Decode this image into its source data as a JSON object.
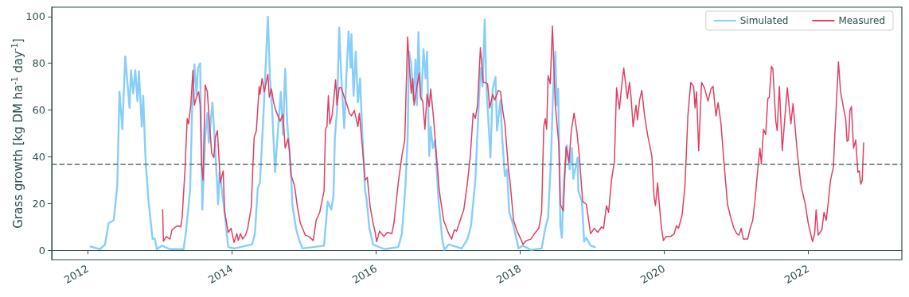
{
  "chart_data": {
    "type": "line",
    "ylabel": "Grass growth [kg DM ha$^{-1}$ day$^{-1}$]",
    "xlim": [
      2011.5,
      2023.3
    ],
    "xticks": [
      2012,
      2014,
      2016,
      2018,
      2020,
      2022
    ],
    "ylim": [
      -4,
      104
    ],
    "yticks": [
      0,
      20,
      40,
      60,
      80,
      100
    ],
    "legend": "top right",
    "marker": "none",
    "line_style": "solid",
    "ref_lines": [
      {
        "axis": "y",
        "value": 37,
        "color": "#5a6e6b",
        "line_style": "dashed"
      }
    ],
    "series": [
      {
        "name": "Simulated",
        "color": "#87cefa",
        "x": [
          2012.04,
          2012.17,
          2012.24,
          2012.29,
          2012.36,
          2012.41,
          2012.44,
          2012.48,
          2012.52,
          2012.58,
          2012.6,
          2012.63,
          2012.66,
          2012.69,
          2012.71,
          2012.75,
          2012.77,
          2012.8,
          2012.84,
          2012.9,
          2012.93,
          2012.96,
          2013.03,
          2013.14,
          2013.33,
          2013.36,
          2013.42,
          2013.45,
          2013.48,
          2013.51,
          2013.53,
          2013.56,
          2013.59,
          2013.63,
          2013.66,
          2013.68,
          2013.73,
          2013.76,
          2013.81,
          2013.83,
          2013.9,
          2013.95,
          2014.03,
          2014.28,
          2014.32,
          2014.36,
          2014.39,
          2014.44,
          2014.47,
          2014.5,
          2014.53,
          2014.56,
          2014.6,
          2014.62,
          2014.68,
          2014.71,
          2014.74,
          2014.77,
          2014.82,
          2014.84,
          2014.89,
          2014.93,
          2014.98,
          2015.28,
          2015.33,
          2015.38,
          2015.41,
          2015.43,
          2015.46,
          2015.49,
          2015.52,
          2015.56,
          2015.59,
          2015.62,
          2015.65,
          2015.66,
          2015.69,
          2015.72,
          2015.75,
          2015.78,
          2015.81,
          2015.85,
          2015.87,
          2015.91,
          2015.96,
          2016.12,
          2016.31,
          2016.36,
          2016.41,
          2016.44,
          2016.46,
          2016.49,
          2016.52,
          2016.55,
          2016.57,
          2016.59,
          2016.61,
          2016.63,
          2016.66,
          2016.69,
          2016.71,
          2016.74,
          2016.76,
          2016.79,
          2016.82,
          2016.87,
          2016.92,
          2016.95,
          2017.01,
          2017.19,
          2017.27,
          2017.32,
          2017.38,
          2017.42,
          2017.45,
          2017.48,
          2017.51,
          2017.53,
          2017.59,
          2017.62,
          2017.66,
          2017.68,
          2017.73,
          2017.75,
          2017.79,
          2017.82,
          2017.85,
          2017.91,
          2017.98,
          2018.04,
          2018.15,
          2018.3,
          2018.35,
          2018.39,
          2018.43,
          2018.46,
          2018.49,
          2018.51,
          2018.53,
          2018.56,
          2018.58,
          2018.61,
          2018.65,
          2018.69,
          2018.72,
          2018.74,
          2018.8,
          2018.81,
          2018.86,
          2018.89,
          2018.92,
          2018.98,
          2019.04
        ],
        "values": [
          1.6,
          0.5,
          2.5,
          11.7,
          12.8,
          27.7,
          67.8,
          51.8,
          82.9,
          60.9,
          77,
          67.2,
          77,
          63.8,
          76.6,
          52.9,
          66.1,
          40.3,
          22,
          4.8,
          5,
          0.5,
          2,
          0.5,
          0.5,
          7.1,
          25.4,
          62,
          79.5,
          66.7,
          77.9,
          80,
          17.4,
          48.3,
          58.7,
          46,
          63.2,
          48.3,
          19.7,
          33.4,
          16.3,
          1.4,
          0.8,
          2.5,
          7.1,
          26.6,
          28.9,
          58.7,
          79.3,
          99.9,
          73.5,
          59.8,
          33.4,
          42.6,
          67.8,
          49.5,
          77.6,
          54.1,
          34.6,
          19.7,
          9.4,
          4.8,
          0.8,
          2,
          20.9,
          17.4,
          23.1,
          48.3,
          59.8,
          95.3,
          73.5,
          52.3,
          74.7,
          93.6,
          78.1,
          92.4,
          66.1,
          85,
          63.2,
          73.5,
          50.6,
          25.4,
          22,
          9.4,
          2.5,
          0.5,
          1.4,
          7.1,
          27.7,
          48.3,
          85,
          79.3,
          64.3,
          81.6,
          62.1,
          93.3,
          73.5,
          64.3,
          86.1,
          73.5,
          85,
          40.3,
          52.9,
          43.7,
          47.2,
          20.9,
          4.8,
          0.2,
          2.5,
          0.8,
          4.8,
          10.5,
          30,
          57.4,
          78.1,
          70.1,
          98.7,
          72.4,
          39.7,
          69,
          74.1,
          51.2,
          64.3,
          49.5,
          31.7,
          34.6,
          16.3,
          10.5,
          0.8,
          2,
          0.2,
          0.8,
          9.4,
          14,
          39.2,
          69,
          85,
          62.1,
          69,
          10.5,
          5.4,
          30,
          44.9,
          34.6,
          43.7,
          30.6,
          39.7,
          25.4,
          20.9,
          3.7,
          5.4,
          2,
          1.4
        ]
      },
      {
        "name": "Measured",
        "color": "#dc4163",
        "x": [
          2013.04,
          2013.05,
          2013.09,
          2013.14,
          2013.17,
          2013.22,
          2013.25,
          2013.29,
          2013.31,
          2013.35,
          2013.38,
          2013.4,
          2013.43,
          2013.46,
          2013.48,
          2013.51,
          2013.54,
          2013.56,
          2013.58,
          2013.6,
          2013.63,
          2013.66,
          2013.68,
          2013.72,
          2013.75,
          2013.77,
          2013.8,
          2013.84,
          2013.88,
          2013.9,
          2013.95,
          2013.99,
          2014.03,
          2014.07,
          2014.09,
          2014.12,
          2014.15,
          2014.19,
          2014.22,
          2014.27,
          2014.29,
          2014.31,
          2014.34,
          2014.38,
          2014.39,
          2014.42,
          2014.45,
          2014.5,
          2014.52,
          2014.55,
          2014.58,
          2014.61,
          2014.67,
          2014.71,
          2014.74,
          2014.78,
          2014.8,
          2014.82,
          2014.87,
          2014.91,
          2014.95,
          2014.98,
          2015.02,
          2015.07,
          2015.13,
          2015.17,
          2015.22,
          2015.28,
          2015.3,
          2015.32,
          2015.34,
          2015.36,
          2015.39,
          2015.41,
          2015.44,
          2015.46,
          2015.49,
          2015.52,
          2015.56,
          2015.6,
          2015.63,
          2015.66,
          2015.7,
          2015.75,
          2015.77,
          2015.81,
          2015.85,
          2015.88,
          2015.92,
          2015.96,
          2015.99,
          2016.01,
          2016.05,
          2016.11,
          2016.16,
          2016.22,
          2016.25,
          2016.31,
          2016.36,
          2016.4,
          2016.44,
          2016.46,
          2016.49,
          2016.51,
          2016.53,
          2016.56,
          2016.6,
          2016.62,
          2016.65,
          2016.68,
          2016.71,
          2016.74,
          2016.76,
          2016.8,
          2016.84,
          2016.88,
          2016.94,
          2017.01,
          2017.05,
          2017.09,
          2017.12,
          2017.17,
          2017.22,
          2017.27,
          2017.31,
          2017.35,
          2017.38,
          2017.41,
          2017.45,
          2017.49,
          2017.52,
          2017.55,
          2017.58,
          2017.62,
          2017.65,
          2017.7,
          2017.73,
          2017.76,
          2017.79,
          2017.84,
          2017.86,
          2017.91,
          2017.96,
          2018.02,
          2018.04,
          2018.09,
          2018.15,
          2018.2,
          2018.26,
          2018.3,
          2018.33,
          2018.35,
          2018.37,
          2018.39,
          2018.42,
          2018.45,
          2018.49,
          2018.54,
          2018.56,
          2018.6,
          2018.64,
          2018.68,
          2018.71,
          2018.75,
          2018.79,
          2018.82,
          2018.87,
          2018.92,
          2018.98,
          2019.03,
          2019.08,
          2019.13,
          2019.16,
          2019.2,
          2019.23,
          2019.27,
          2019.31,
          2019.34,
          2019.38,
          2019.41,
          2019.44,
          2019.49,
          2019.52,
          2019.54,
          2019.57,
          2019.61,
          2019.63,
          2019.66,
          2019.69,
          2019.73,
          2019.77,
          2019.83,
          2019.86,
          2019.88,
          2019.91,
          2019.93,
          2019.96,
          2019.99,
          2020.03,
          2020.09,
          2020.14,
          2020.17,
          2020.2,
          2020.25,
          2020.29,
          2020.33,
          2020.37,
          2020.41,
          2020.43,
          2020.45,
          2020.48,
          2020.52,
          2020.56,
          2020.61,
          2020.65,
          2020.68,
          2020.72,
          2020.75,
          2020.79,
          2020.83,
          2020.88,
          2020.93,
          2020.97,
          2021.01,
          2021.04,
          2021.07,
          2021.1,
          2021.16,
          2021.19,
          2021.23,
          2021.26,
          2021.3,
          2021.33,
          2021.35,
          2021.38,
          2021.41,
          2021.44,
          2021.46,
          2021.49,
          2021.51,
          2021.55,
          2021.57,
          2021.6,
          2021.64,
          2021.69,
          2021.71,
          2021.76,
          2021.79,
          2021.85,
          2021.9,
          2021.96,
          2022,
          2022.06,
          2022.09,
          2022.11,
          2022.14,
          2022.19,
          2022.22,
          2022.25,
          2022.28,
          2022.31,
          2022.35,
          2022.37,
          2022.42,
          2022.45,
          2022.49,
          2022.52,
          2022.54,
          2022.56,
          2022.58,
          2022.6,
          2022.63,
          2022.66,
          2022.69,
          2022.71,
          2022.73,
          2022.75,
          2022.77
        ],
        "values": [
          17.4,
          3.9,
          5.9,
          4.8,
          8.8,
          10,
          10.5,
          10,
          14,
          34.6,
          56.4,
          54.1,
          62.1,
          77,
          62.1,
          65.5,
          67.8,
          62.1,
          36.9,
          30,
          70.7,
          67.8,
          58.7,
          41.5,
          39.7,
          48.3,
          51.2,
          28.9,
          34,
          16.3,
          7.7,
          9.4,
          3.4,
          7.1,
          4.2,
          7.1,
          4.8,
          6.5,
          9.4,
          18.6,
          34.6,
          48.3,
          51.2,
          70.1,
          66.7,
          73.5,
          67.8,
          75.3,
          65.5,
          69,
          63.2,
          59.8,
          55.2,
          58.1,
          43.7,
          47.8,
          42.6,
          32.3,
          27.7,
          18.6,
          11.7,
          9.4,
          6.5,
          5.9,
          4.2,
          12.8,
          16.3,
          25.4,
          51.8,
          52.9,
          66.1,
          54.1,
          57.5,
          63.2,
          72.9,
          62.1,
          69.5,
          69.5,
          65.5,
          62.1,
          58.7,
          57.5,
          59.8,
          52.9,
          58.7,
          44.9,
          30,
          31.2,
          18.6,
          11.7,
          7.7,
          3.7,
          8.2,
          5.9,
          7.7,
          7.1,
          11.7,
          28.9,
          40.3,
          47.2,
          91.3,
          80.4,
          67.2,
          73.5,
          62.1,
          68.4,
          75.8,
          65.5,
          63.8,
          51.8,
          66.7,
          61.5,
          69,
          56.4,
          40.3,
          25.4,
          12.8,
          7.1,
          4.8,
          8.8,
          8.2,
          12.8,
          17.4,
          28.9,
          40.3,
          58.7,
          56.4,
          62.1,
          86.7,
          71.8,
          71.8,
          71.2,
          60.9,
          66.7,
          64.3,
          68.4,
          67.8,
          59.8,
          54.1,
          34.6,
          30,
          12.8,
          8.2,
          4.2,
          2.5,
          4.2,
          4.8,
          7.1,
          9.4,
          16.3,
          52.9,
          56.4,
          51.8,
          74.7,
          71.2,
          95.9,
          62.1,
          44.9,
          19.7,
          16.8,
          44.3,
          37.5,
          50.6,
          58.7,
          50.6,
          41.5,
          20.9,
          19.7,
          7.1,
          9.4,
          7.7,
          10,
          9.4,
          19.1,
          16.3,
          30,
          38,
          69.5,
          60.4,
          70.1,
          77.9,
          64.9,
          71.8,
          66.1,
          52.9,
          62.1,
          55.8,
          64.3,
          68.4,
          57.5,
          49.5,
          40.3,
          23.1,
          19.1,
          28.9,
          20.9,
          10.5,
          4.2,
          5.9,
          5.9,
          7.1,
          10.5,
          9.4,
          15.1,
          27.7,
          57.5,
          71.8,
          70.1,
          60.9,
          67.8,
          42.6,
          71.8,
          69.5,
          63.8,
          69,
          70.1,
          57.5,
          63.2,
          54.1,
          38,
          19.7,
          13.4,
          9.4,
          7.1,
          6.5,
          9.4,
          4.8,
          4.8,
          8.8,
          12.8,
          20.9,
          34.6,
          43.7,
          36.9,
          51.8,
          49.5,
          64.9,
          65.5,
          78.7,
          77.6,
          55.2,
          51.2,
          70.1,
          42.6,
          62.1,
          69.5,
          54.1,
          62.7,
          41.5,
          27.7,
          19.7,
          11.7,
          3.7,
          7.1,
          17.4,
          6.5,
          8.8,
          16.3,
          12.8,
          20.9,
          30,
          35.7,
          49.5,
          80.6,
          67.8,
          60.9,
          56.4,
          46.6,
          47.2,
          59.8,
          61.5,
          43.7,
          47.2,
          33.4,
          34,
          28.3,
          30,
          46
        ]
      }
    ]
  }
}
